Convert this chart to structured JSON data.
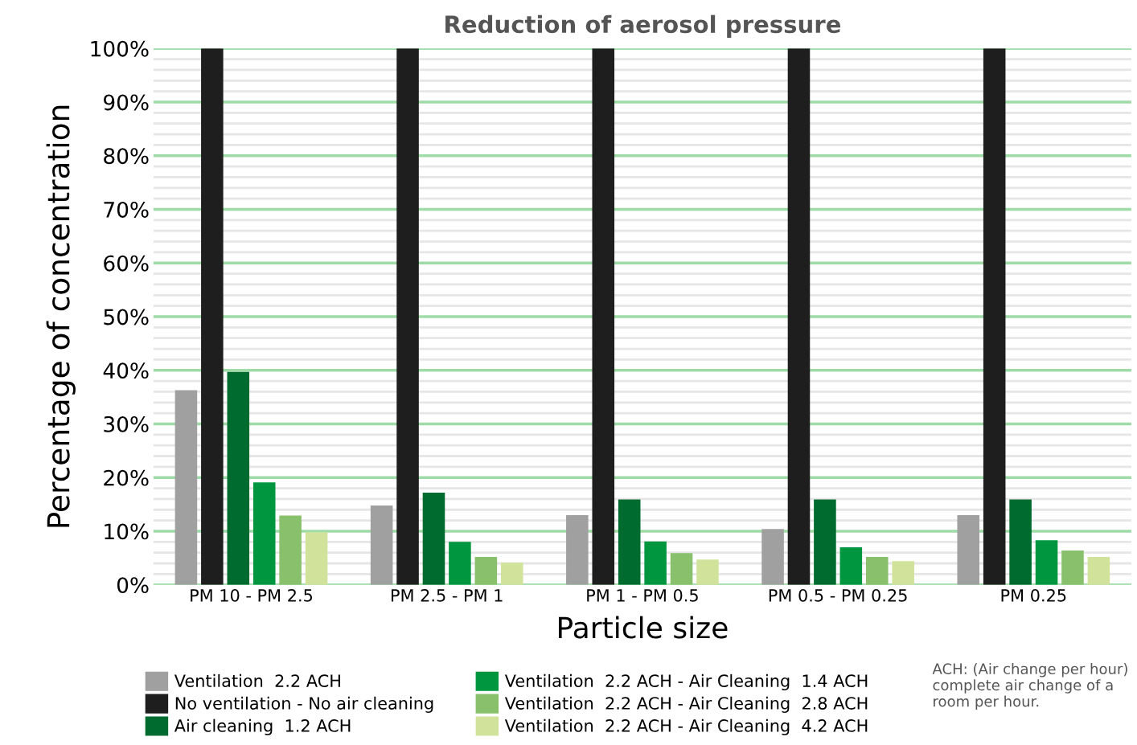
{
  "chart_data": {
    "type": "bar",
    "title": "Reduction of aerosol pressure",
    "xlabel": "Particle size",
    "ylabel": "Percentage of concentration",
    "categories": [
      "PM 10 - PM 2.5",
      "PM 2.5 - PM 1",
      "PM 1 - PM 0.5",
      "PM 0.5 - PM 0.25",
      "PM 0.25"
    ],
    "series": [
      {
        "name": "Ventilation  2.2 ACH",
        "color": "#a0a0a0",
        "values": [
          36.3,
          14.8,
          13,
          10.4,
          13
        ]
      },
      {
        "name": "No ventilation - No air cleaning",
        "color": "#1e1e1e",
        "values": [
          100,
          100,
          100,
          100,
          100
        ]
      },
      {
        "name": "Air cleaning  1.2 ACH",
        "color": "#006b2e",
        "values": [
          39.7,
          17.2,
          15.9,
          15.9,
          15.9
        ]
      },
      {
        "name": "Ventilation  2.2 ACH - Air Cleaning  1.4 ACH",
        "color": "#00963f",
        "values": [
          19.1,
          8,
          8.1,
          7,
          8.3
        ]
      },
      {
        "name": "Ventilation  2.2 ACH - Air Cleaning  2.8 ACH",
        "color": "#88c06b",
        "values": [
          12.9,
          5.2,
          5.9,
          5.2,
          6.4
        ]
      },
      {
        "name": "Ventilation  2.2 ACH - Air Cleaning  4.2 ACH",
        "color": "#d1e39b",
        "values": [
          9.8,
          4.1,
          4.7,
          4.4,
          5.2
        ]
      }
    ],
    "ylim": [
      0,
      100
    ],
    "yticks": [
      {
        "value": 0,
        "label": "0%"
      },
      {
        "value": 10,
        "label": "10%"
      },
      {
        "value": 20,
        "label": "20%"
      },
      {
        "value": 30,
        "label": "30%"
      },
      {
        "value": 40,
        "label": "40%"
      },
      {
        "value": 50,
        "label": "50%"
      },
      {
        "value": 60,
        "label": "60%"
      },
      {
        "value": 70,
        "label": "70%"
      },
      {
        "value": 80,
        "label": "80%"
      },
      {
        "value": 90,
        "label": "90%"
      },
      {
        "value": 100,
        "label": "100%"
      }
    ],
    "grid": "y",
    "legend": "bottom",
    "annotations": [
      "ACH: (Air change per hour)\ncomplete air change of a\nroom per hour."
    ]
  }
}
